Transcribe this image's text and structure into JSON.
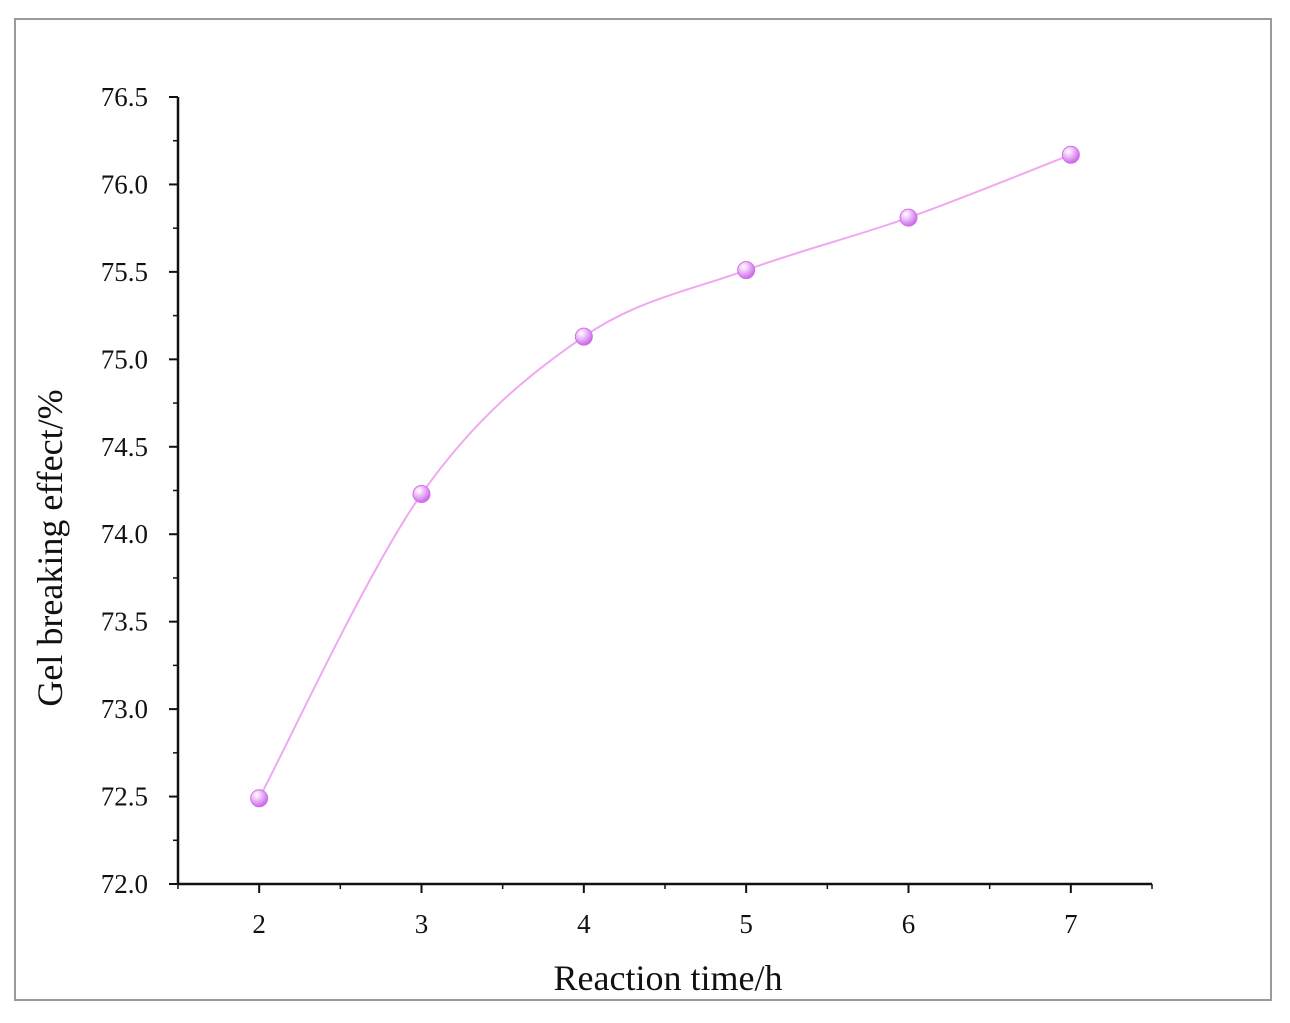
{
  "chart_data": {
    "type": "line",
    "x": [
      2,
      3,
      4,
      5,
      6,
      7
    ],
    "series": [
      {
        "values": [
          72.49,
          74.23,
          75.13,
          75.51,
          75.81,
          76.17
        ]
      }
    ],
    "xlabel": "Reaction time/h",
    "ylabel": "Gel breaking effect/%",
    "xlim": [
      1.5,
      7.5
    ],
    "ylim": [
      72.0,
      76.5
    ],
    "xticks": [
      2,
      3,
      4,
      5,
      6,
      7
    ],
    "yticks": [
      72.0,
      72.5,
      73.0,
      73.5,
      74.0,
      74.5,
      75.0,
      75.5,
      76.0,
      76.5
    ],
    "xtick_labels": [
      "2",
      "3",
      "4",
      "5",
      "6",
      "7"
    ],
    "ytick_labels": [
      "72.0",
      "72.5",
      "73.0",
      "73.5",
      "74.0",
      "74.5",
      "75.0",
      "75.5",
      "76.0",
      "76.5"
    ],
    "grid": false,
    "smooth": true,
    "colors": {
      "line": "#f0a8f0",
      "marker": "#d070e8",
      "marker_highlight": "#f4d6fb"
    }
  }
}
